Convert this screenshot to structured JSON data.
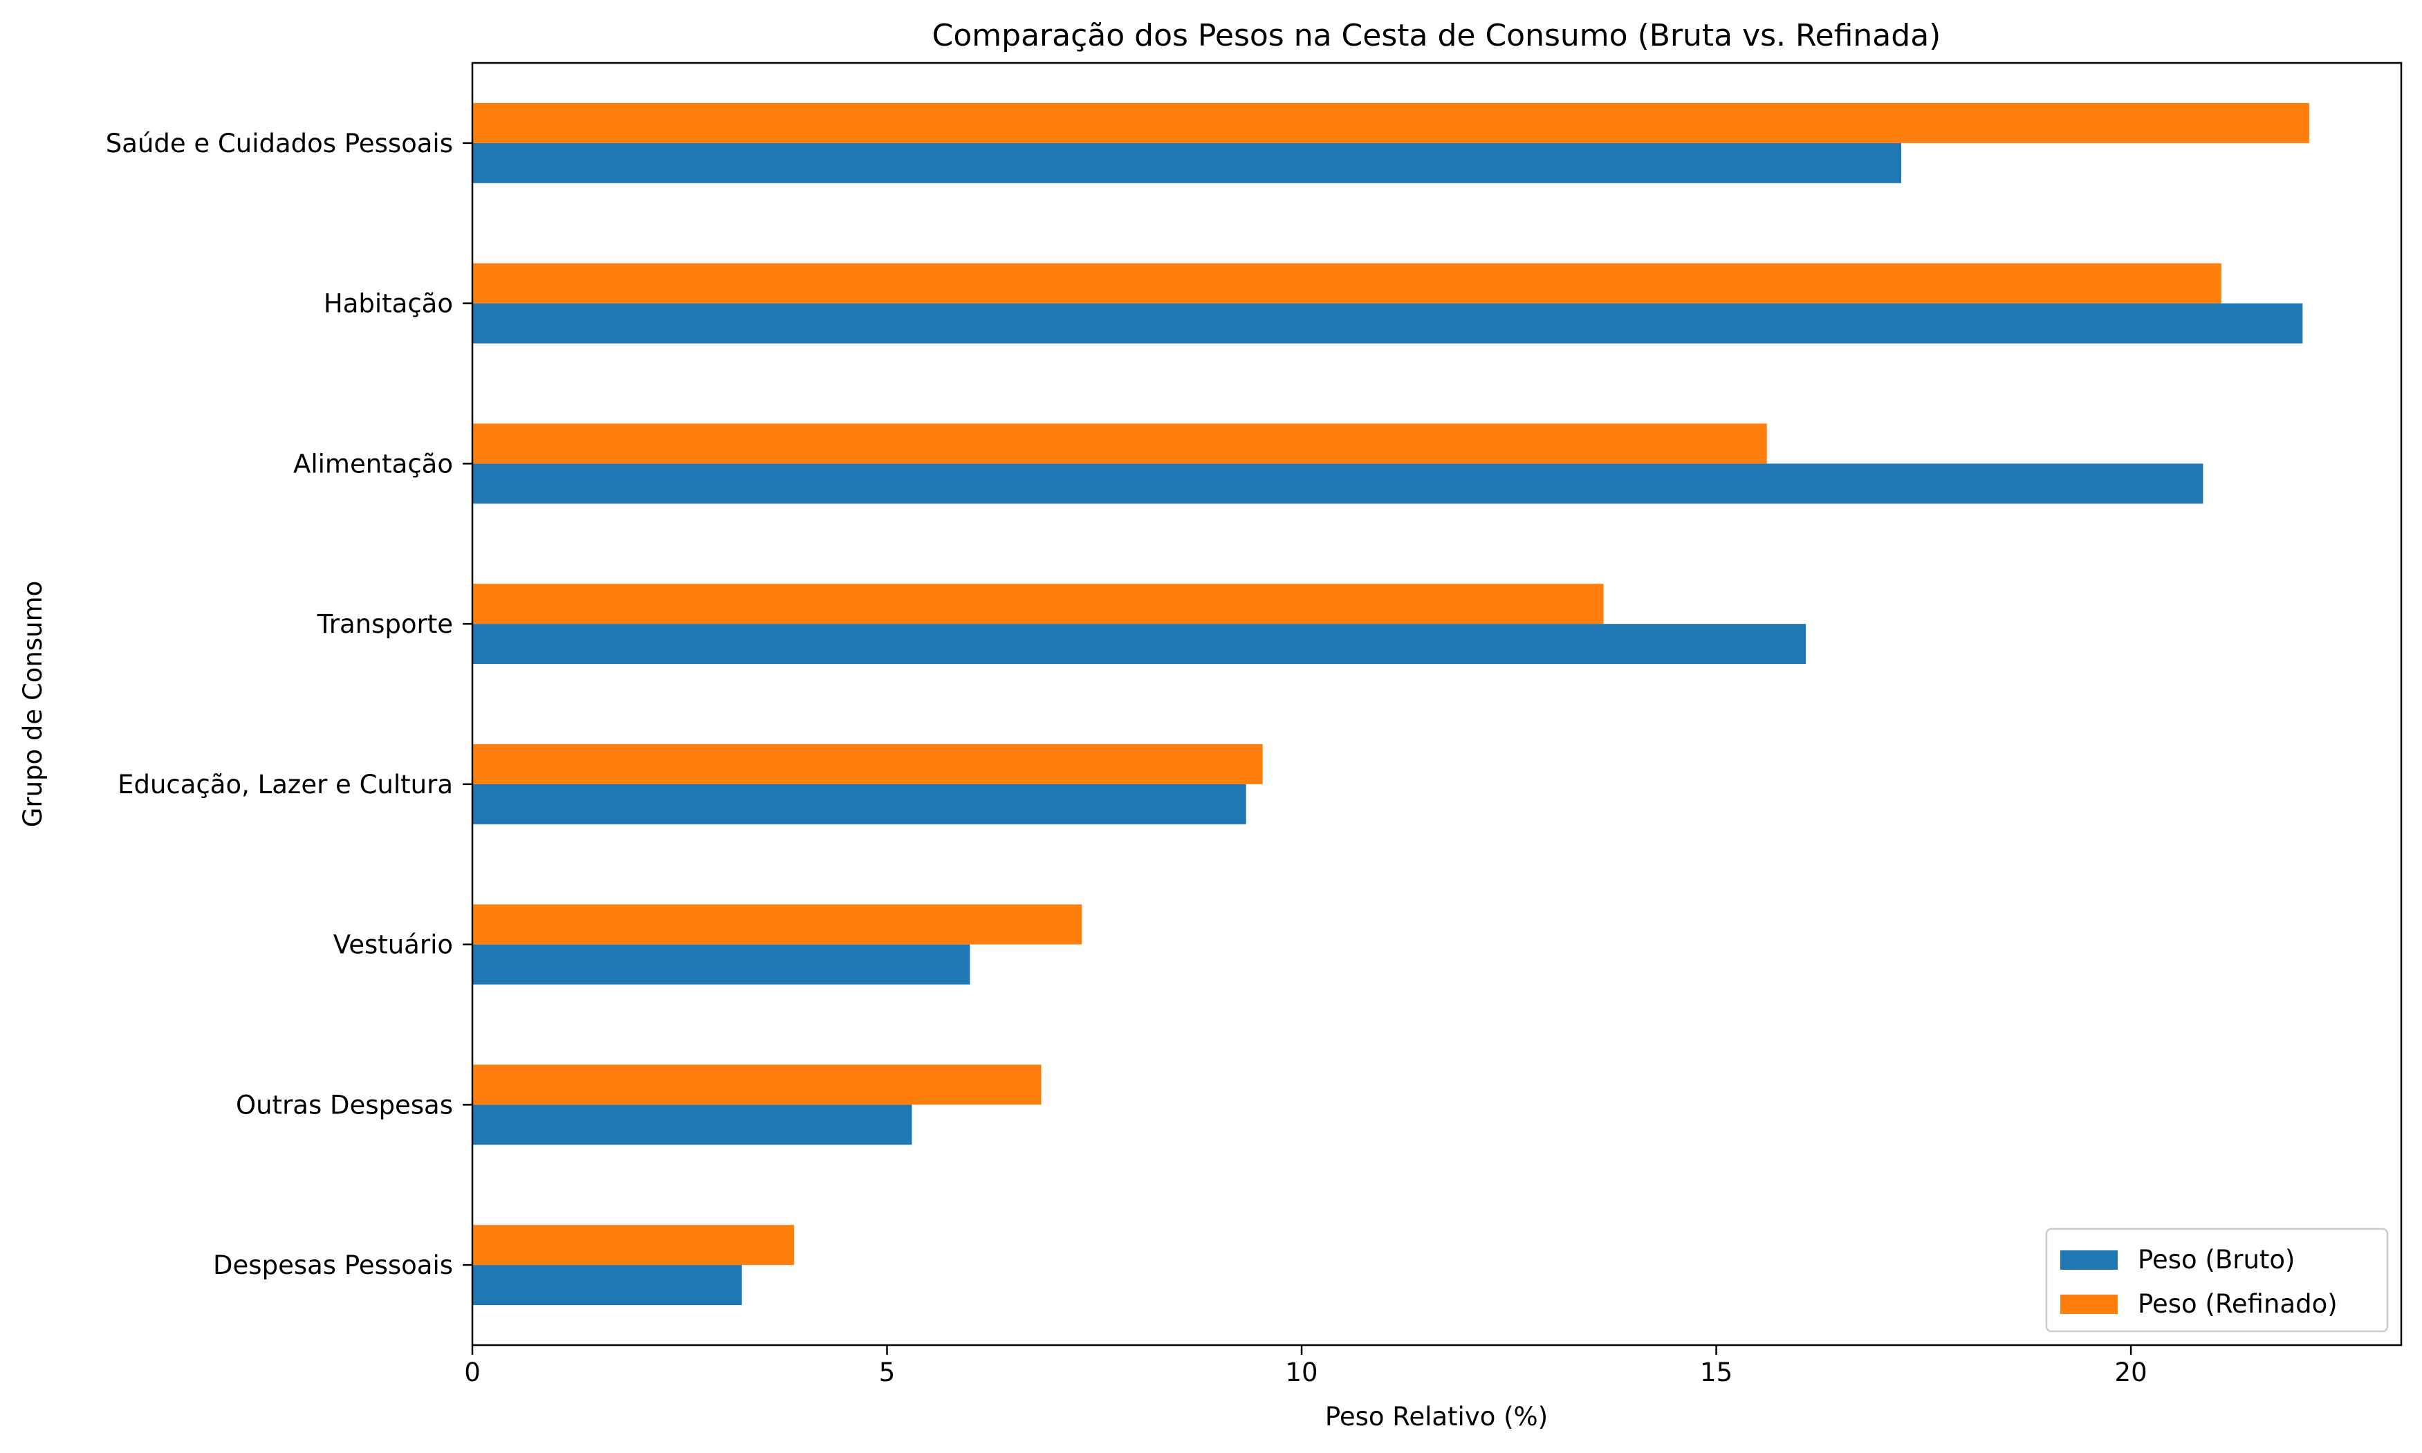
{
  "chart_data": {
    "type": "bar",
    "orientation": "horizontal",
    "title": "Comparação dos Pesos na Cesta de Consumo (Bruta vs. Refinada)",
    "xlabel": "Peso Relativo (%)",
    "ylabel": "Grupo de Consumo",
    "xlim": [
      0,
      23.26
    ],
    "xticks": [
      0,
      5,
      10,
      15,
      20
    ],
    "categories": [
      "Despesas Pessoais",
      "Outras Despesas",
      "Vestuário",
      "Educação, Lazer e Cultura",
      "Transporte",
      "Alimentação",
      "Habitação",
      "Saúde e Cuidados Pessoais"
    ],
    "series": [
      {
        "name": "Peso (Bruto)",
        "color": "#1f77b4",
        "values": [
          3.25,
          5.3,
          6.0,
          9.33,
          16.08,
          20.87,
          22.07,
          17.23
        ]
      },
      {
        "name": "Peso (Refinado)",
        "color": "#ff7f0e",
        "values": [
          3.88,
          6.86,
          7.35,
          9.53,
          13.64,
          15.61,
          21.09,
          22.15
        ]
      }
    ],
    "legend_position": "lower-right",
    "grid": false
  }
}
